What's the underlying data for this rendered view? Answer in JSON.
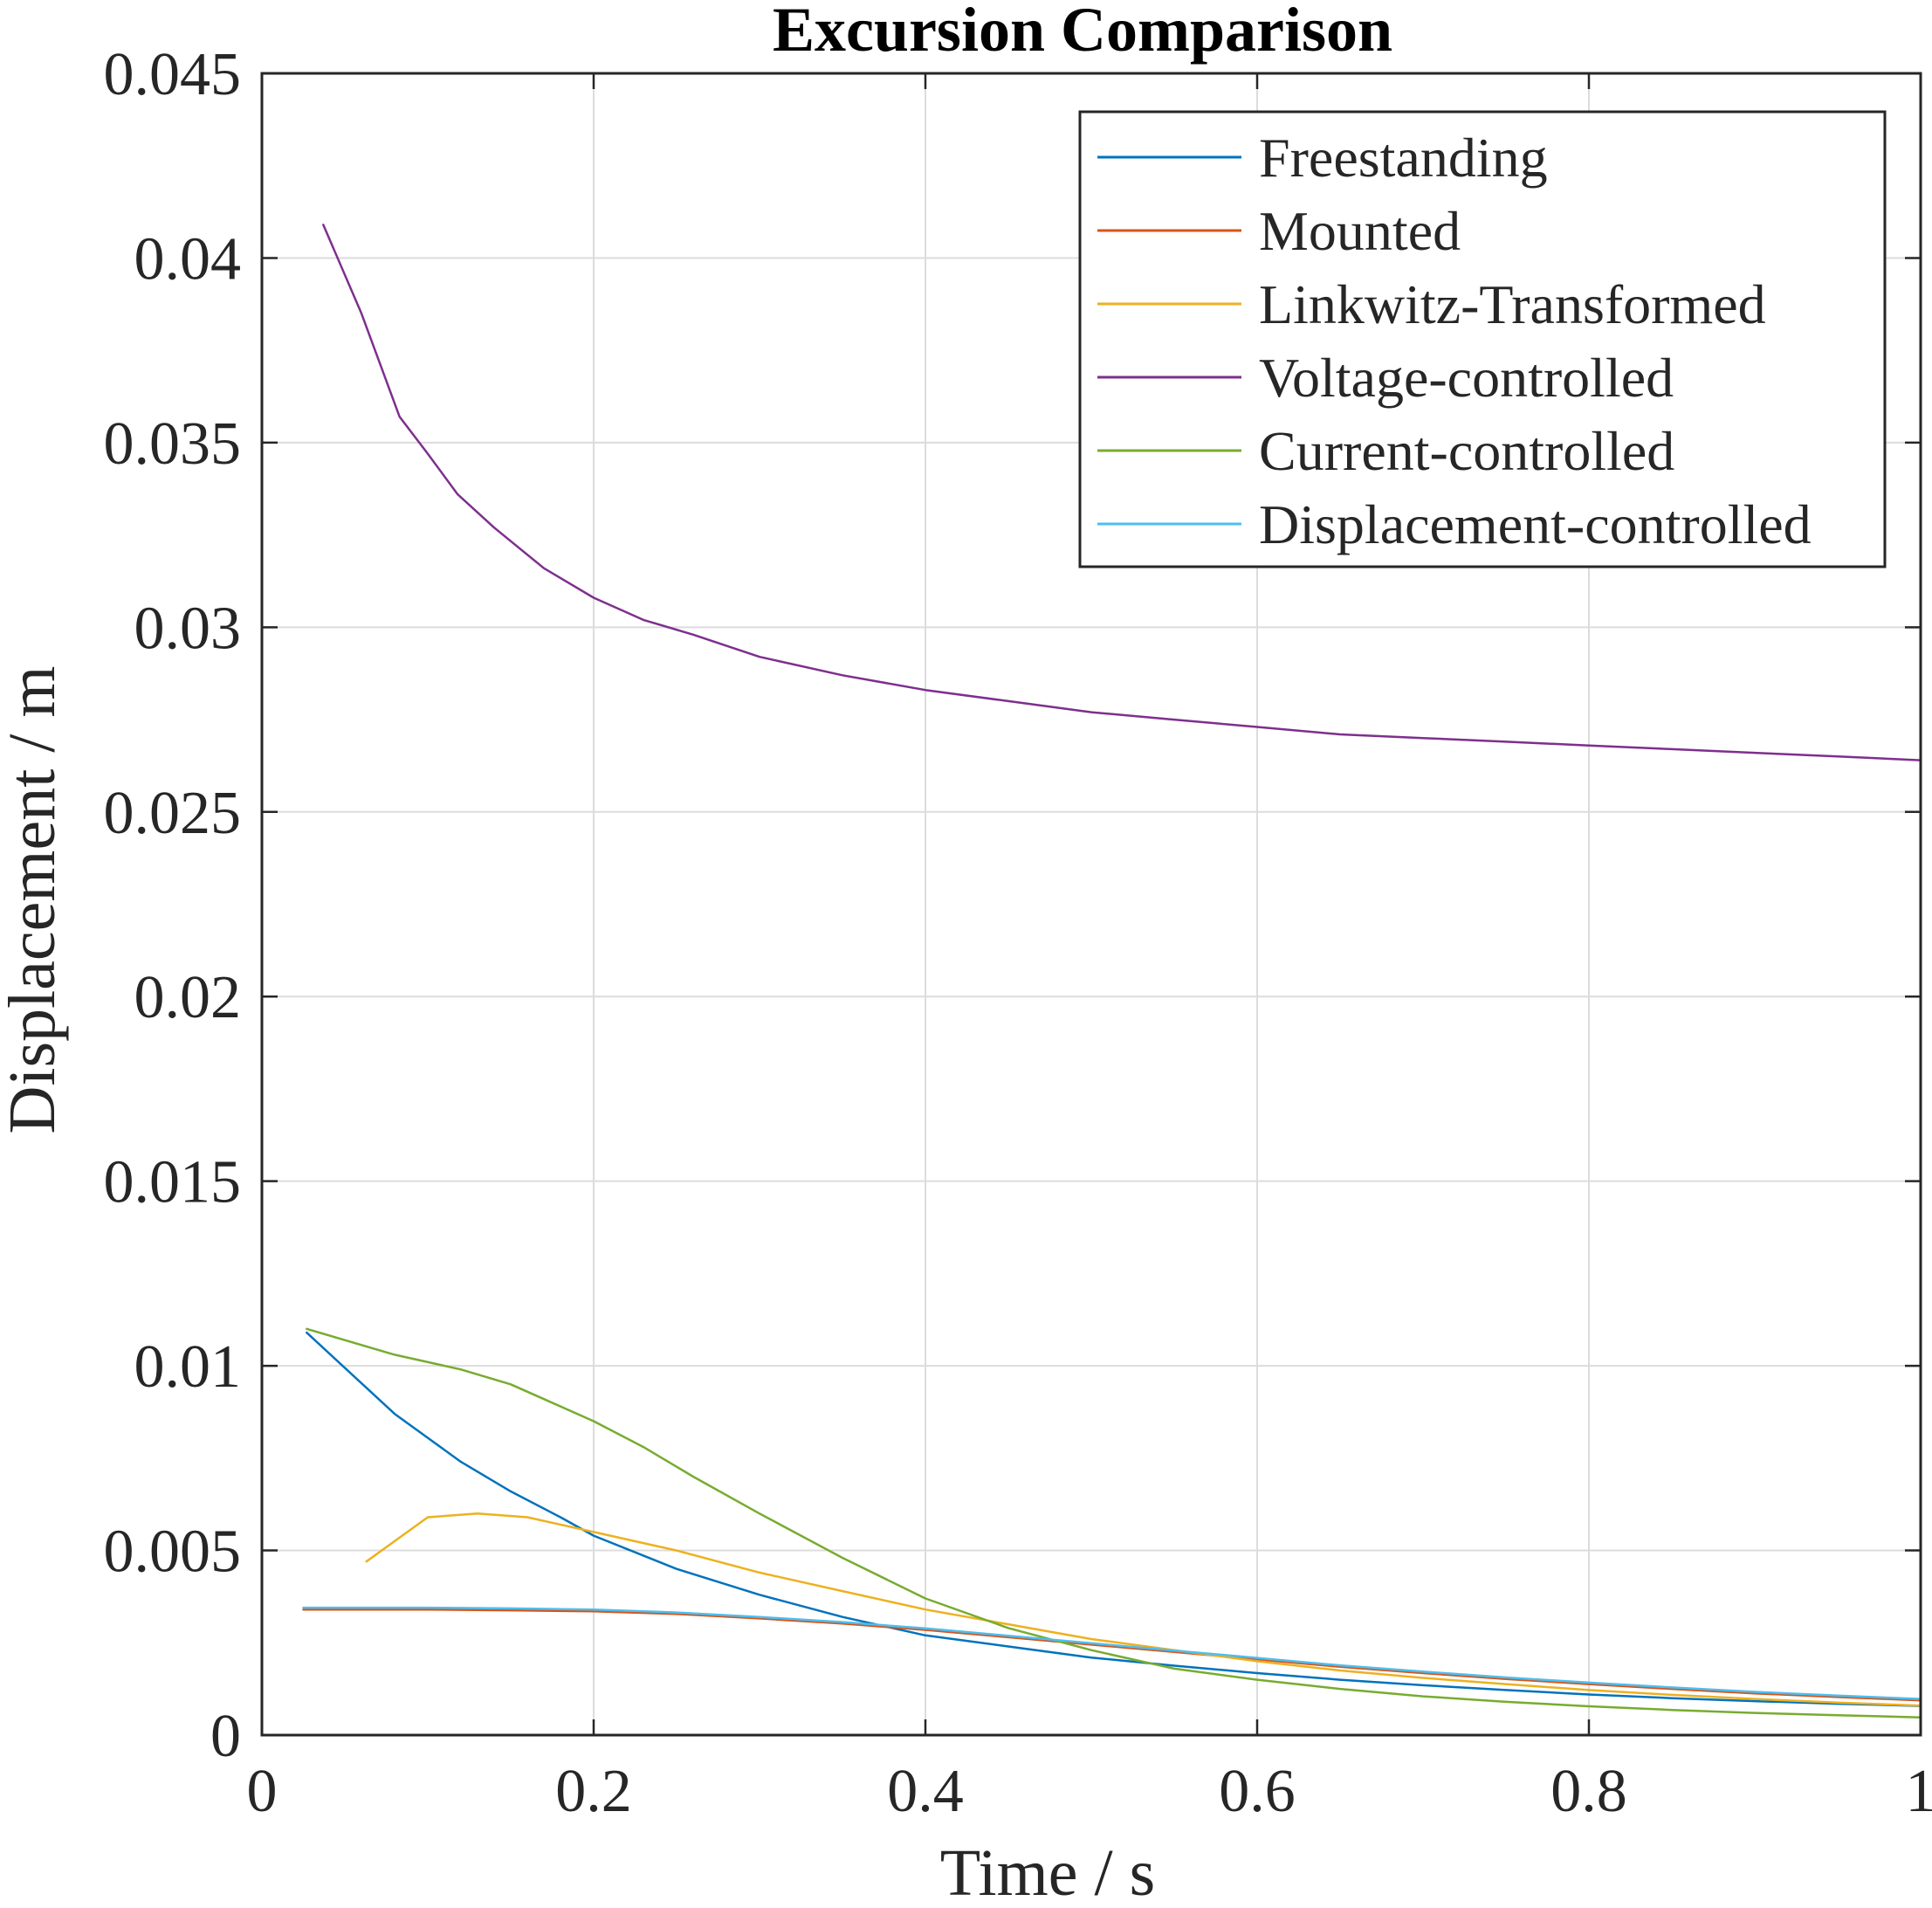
{
  "chart_data": {
    "type": "line",
    "title": "Excursion Comparison",
    "xlabel": "Time / s",
    "ylabel": "Displacement / m",
    "xlim": [
      0,
      1
    ],
    "ylim": [
      0,
      0.045
    ],
    "xticks": [
      0,
      0.2,
      0.4,
      0.6,
      0.8,
      1
    ],
    "xtick_labels": [
      "0",
      "0.2",
      "0.4",
      "0.6",
      "0.8",
      "1"
    ],
    "yticks": [
      0,
      0.005,
      0.01,
      0.015,
      0.02,
      0.025,
      0.03,
      0.035,
      0.04,
      0.045
    ],
    "ytick_labels": [
      "0",
      "0.005",
      "0.01",
      "0.015",
      "0.02",
      "0.025",
      "0.03",
      "0.035",
      "0.04",
      "0.045"
    ],
    "grid": true,
    "legend_position": "top-right",
    "series": [
      {
        "name": "Freestanding",
        "color": "#0072BD",
        "x": [
          0.027,
          0.08,
          0.12,
          0.15,
          0.18,
          0.2,
          0.25,
          0.3,
          0.35,
          0.4,
          0.45,
          0.5,
          0.55,
          0.6,
          0.65,
          0.7,
          0.75,
          0.8,
          0.85,
          0.9,
          0.95,
          1.0
        ],
        "y": [
          0.0109,
          0.0087,
          0.0074,
          0.0066,
          0.0059,
          0.0054,
          0.0045,
          0.0038,
          0.0032,
          0.0027,
          0.0024,
          0.0021,
          0.00188,
          0.00168,
          0.0015,
          0.00135,
          0.00122,
          0.0011,
          0.001,
          0.00092,
          0.00085,
          0.00079
        ]
      },
      {
        "name": "Mounted",
        "color": "#D95319",
        "x": [
          0.025,
          0.1,
          0.15,
          0.2,
          0.25,
          0.3,
          0.35,
          0.4,
          0.45,
          0.5,
          0.55,
          0.6,
          0.65,
          0.7,
          0.75,
          0.8,
          0.85,
          0.9,
          0.95,
          1.0
        ],
        "y": [
          0.0034,
          0.0034,
          0.00338,
          0.00335,
          0.00328,
          0.00316,
          0.00302,
          0.00285,
          0.00265,
          0.00245,
          0.00225,
          0.00205,
          0.00185,
          0.00168,
          0.00152,
          0.00138,
          0.00125,
          0.00113,
          0.00103,
          0.00094
        ]
      },
      {
        "name": "Linkwitz-Transformed",
        "color": "#EDB120",
        "x": [
          0.063,
          0.1,
          0.13,
          0.16,
          0.2,
          0.25,
          0.3,
          0.35,
          0.4,
          0.45,
          0.5,
          0.55,
          0.6,
          0.65,
          0.7,
          0.75,
          0.8,
          0.85,
          0.9,
          0.95,
          1.0
        ],
        "y": [
          0.0047,
          0.0059,
          0.006,
          0.0059,
          0.0055,
          0.005,
          0.0044,
          0.0039,
          0.0034,
          0.003,
          0.0026,
          0.0023,
          0.002,
          0.00175,
          0.00155,
          0.00138,
          0.00122,
          0.00109,
          0.00098,
          0.00088,
          0.0008
        ]
      },
      {
        "name": "Voltage-controlled",
        "color": "#7E2F8E",
        "x": [
          0.037,
          0.06,
          0.083,
          0.1,
          0.118,
          0.14,
          0.17,
          0.2,
          0.23,
          0.26,
          0.3,
          0.35,
          0.4,
          0.45,
          0.5,
          0.55,
          0.6,
          0.65,
          0.7,
          0.75,
          0.8,
          0.85,
          0.9,
          0.95,
          1.0
        ],
        "y": [
          0.0409,
          0.0385,
          0.0357,
          0.0347,
          0.0336,
          0.0327,
          0.0316,
          0.0308,
          0.0302,
          0.0298,
          0.0292,
          0.0287,
          0.0283,
          0.028,
          0.0277,
          0.0275,
          0.0273,
          0.0271,
          0.027,
          0.0269,
          0.0268,
          0.0267,
          0.0266,
          0.0265,
          0.0264
        ]
      },
      {
        "name": "Current-controlled",
        "color": "#77AC30",
        "x": [
          0.027,
          0.08,
          0.12,
          0.15,
          0.17,
          0.2,
          0.23,
          0.26,
          0.3,
          0.35,
          0.4,
          0.45,
          0.5,
          0.55,
          0.6,
          0.65,
          0.7,
          0.75,
          0.8,
          0.85,
          0.9,
          0.95,
          1.0
        ],
        "y": [
          0.011,
          0.0103,
          0.0099,
          0.0095,
          0.0091,
          0.0085,
          0.0078,
          0.007,
          0.006,
          0.0048,
          0.0037,
          0.0029,
          0.0023,
          0.0018,
          0.0015,
          0.00125,
          0.00105,
          0.0009,
          0.00078,
          0.00068,
          0.0006,
          0.00054,
          0.00048
        ]
      },
      {
        "name": "Displacement-controlled",
        "color": "#4DBEEE",
        "x": [
          0.025,
          0.1,
          0.15,
          0.2,
          0.25,
          0.3,
          0.35,
          0.4,
          0.45,
          0.5,
          0.55,
          0.6,
          0.65,
          0.7,
          0.75,
          0.8,
          0.85,
          0.9,
          0.95,
          1.0
        ],
        "y": [
          0.00345,
          0.00345,
          0.00343,
          0.0034,
          0.00332,
          0.0032,
          0.00306,
          0.00289,
          0.00269,
          0.00249,
          0.00229,
          0.00209,
          0.00189,
          0.00172,
          0.00156,
          0.00142,
          0.00129,
          0.00117,
          0.00107,
          0.00098
        ]
      }
    ]
  }
}
